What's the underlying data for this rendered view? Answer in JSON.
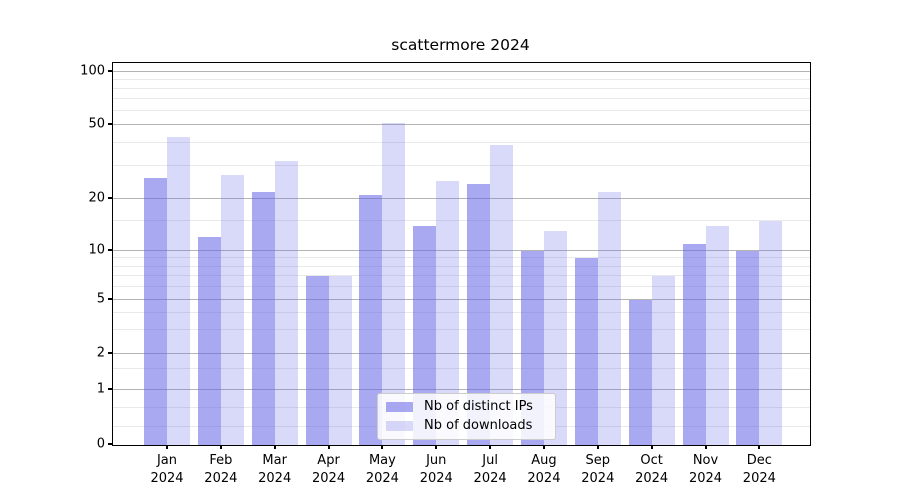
{
  "title": "scattermore 2024",
  "legend": {
    "items": [
      {
        "label": "Nb of distinct IPs",
        "color_key": "series1"
      },
      {
        "label": "Nb of downloads",
        "color_key": "series2"
      }
    ]
  },
  "colors": {
    "series1": "rgba(102,102,230,0.56)",
    "series2": "rgba(102,102,230,0.25)",
    "grid_major": "#b4b4b4",
    "grid_minor": "#e9e9e9",
    "axis": "#000000",
    "legend_border": "#cccccc"
  },
  "chart_data": {
    "type": "bar",
    "title": "scattermore 2024",
    "categories": [
      "Jan 2024",
      "Feb 2024",
      "Mar 2024",
      "Apr 2024",
      "May 2024",
      "Jun 2024",
      "Jul 2024",
      "Aug 2024",
      "Sep 2024",
      "Oct 2024",
      "Nov 2024",
      "Dec 2024"
    ],
    "series": [
      {
        "name": "Nb of distinct IPs",
        "values": [
          26,
          12,
          22,
          7,
          21,
          14,
          24,
          10,
          9,
          5,
          11,
          10
        ]
      },
      {
        "name": "Nb of downloads",
        "values": [
          43,
          27,
          32,
          7,
          51,
          25,
          39,
          13,
          22,
          7,
          14,
          15
        ]
      }
    ],
    "yticks": [
      0,
      1,
      2,
      5,
      10,
      20,
      50,
      100
    ],
    "ytick_labels": [
      "0",
      "1",
      "2",
      "5",
      "10",
      "20",
      "50",
      "100"
    ],
    "yscale": "symlog-like (linear 0-1, log above 1)",
    "ylim": [
      0,
      107
    ],
    "grid": true,
    "legend_position": "lower center"
  }
}
